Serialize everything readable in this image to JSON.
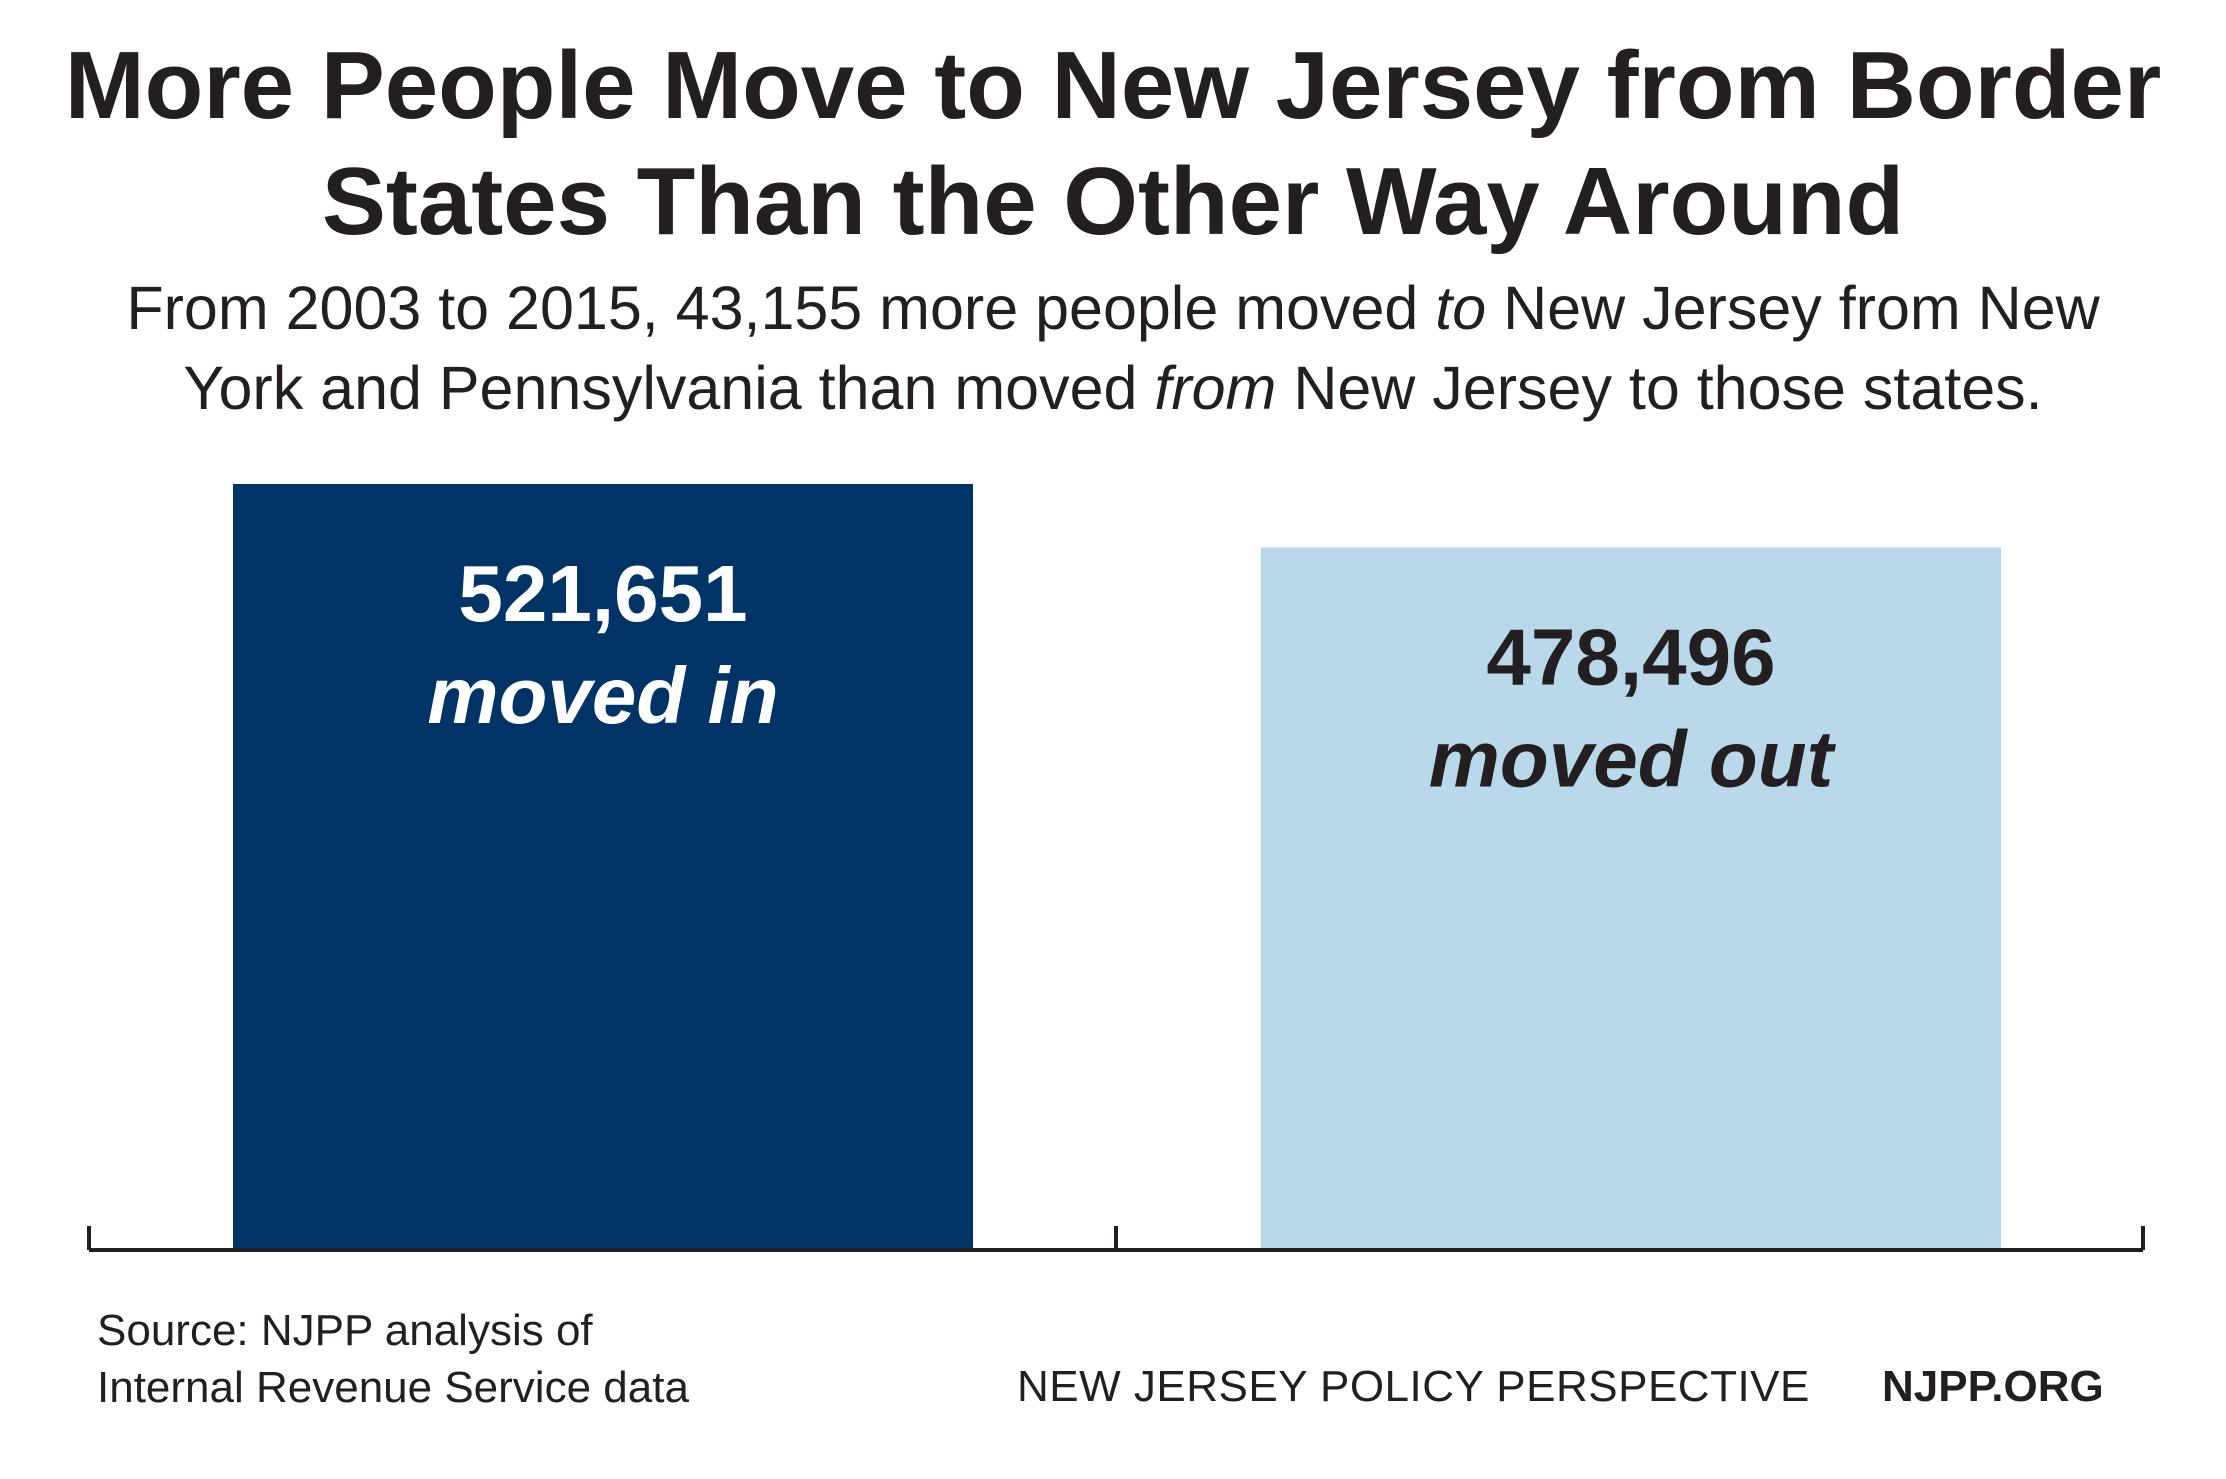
{
  "title_line1": "More People Move to New Jersey from Border",
  "title_line2": "States Than the Other Way Around",
  "subtitle": {
    "part1": "From 2003 to 2015, 43,155 more people moved ",
    "em1": "to",
    "part2": " New Jersey from New",
    "part3": "York and Pennsylvania than moved ",
    "em2": "from",
    "part4": " New Jersey to those states."
  },
  "chart_data": {
    "type": "bar",
    "categories": [
      "moved in",
      "moved out"
    ],
    "values": [
      521651,
      478496
    ],
    "value_labels": [
      "521,651",
      "478,496"
    ],
    "colors": [
      "#003366",
      "#b9d9ea"
    ],
    "label_colors": [
      "#ffffff",
      "#231f20"
    ],
    "ylim": [
      0,
      521651
    ],
    "grid": false,
    "legend": "none"
  },
  "footer": {
    "source_line1": "Source: NJPP analysis of",
    "source_line2": "Internal Revenue Service data",
    "org": "NEW JERSEY POLICY PERSPECTIVE",
    "url": "NJPP.ORG"
  }
}
